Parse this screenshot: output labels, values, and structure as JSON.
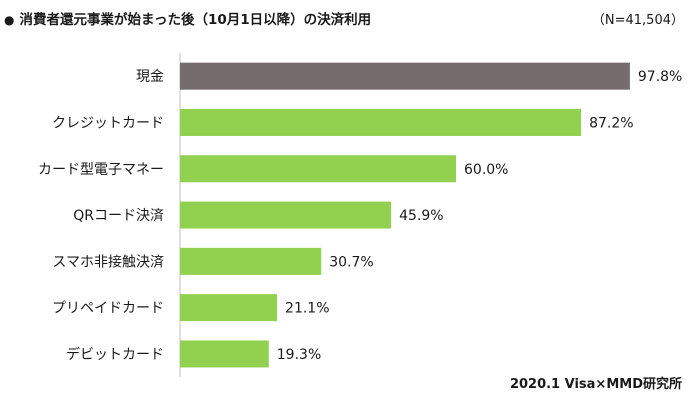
{
  "header": {
    "bullet": "●",
    "title": "消費者還元事業が始まった後（10月1日以降）の決済利用",
    "sample_size": "（N=41,504）"
  },
  "footer": {
    "source": "2020.1 Visa×MMD研究所"
  },
  "chart_data": {
    "type": "bar",
    "orientation": "horizontal",
    "title": "消費者還元事業が始まった後（10月1日以降）の決済利用",
    "categories": [
      "現金",
      "クレジットカード",
      "カード型電子マネー",
      "QRコード決済",
      "スマホ非接触決済",
      "プリペイドカード",
      "デビットカード"
    ],
    "values": [
      97.8,
      87.2,
      60.0,
      45.9,
      30.7,
      21.1,
      19.3
    ],
    "value_labels": [
      "97.8%",
      "87.2%",
      "60.0%",
      "45.9%",
      "30.7%",
      "21.1%",
      "19.3%"
    ],
    "xlim": [
      0,
      100
    ],
    "grid": false,
    "colors": {
      "highlight": "#736b6c",
      "default": "#92d050"
    },
    "highlight_index": 0
  }
}
